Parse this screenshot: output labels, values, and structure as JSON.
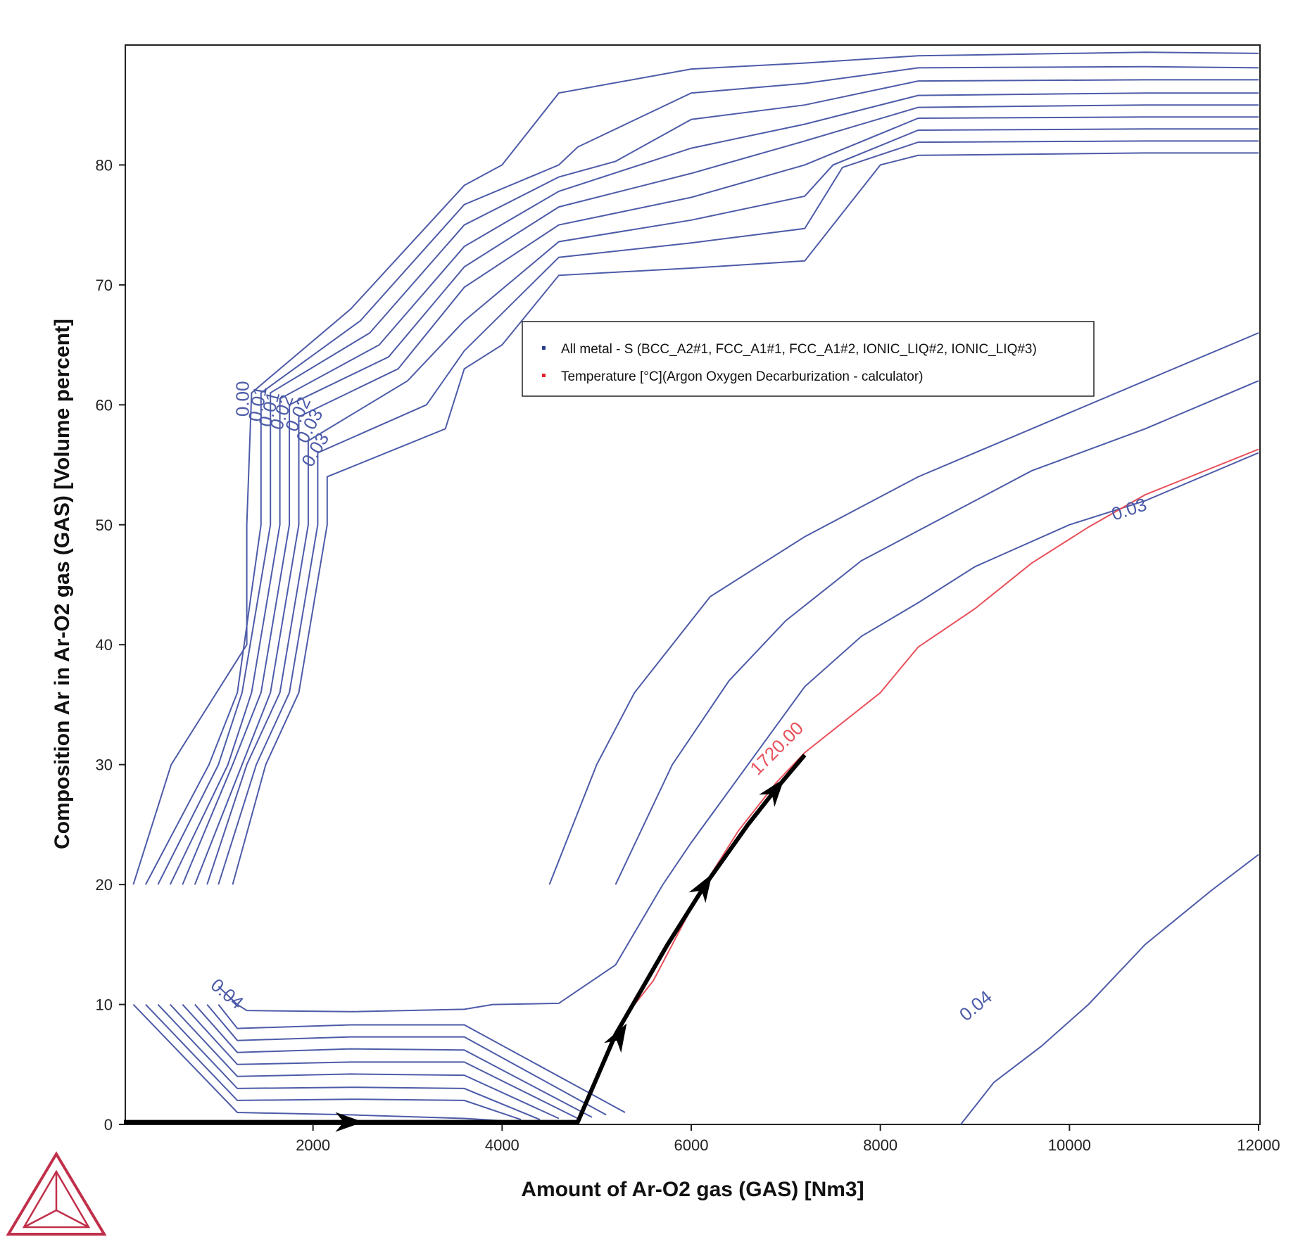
{
  "chart_data": {
    "type": "line",
    "xlabel": "Amount of Ar-O2 gas (GAS) [Nm3]",
    "ylabel": "Composition Ar in Ar-O2 gas (GAS) [Volume percent]",
    "xlim": [
      0,
      12000
    ],
    "ylim": [
      0,
      90
    ],
    "x_ticks": [
      2000,
      4000,
      6000,
      8000,
      10000,
      12000
    ],
    "y_ticks": [
      0,
      10,
      20,
      30,
      40,
      50,
      60,
      70,
      80
    ],
    "grid": false,
    "legend_position": "center",
    "colors": {
      "contour": "#4d5ba8",
      "temperature": "#e8505a",
      "path": "#000000",
      "logo": "#c0304a"
    },
    "legend": [
      {
        "label": "All metal - S (BCC_A2#1, FCC_A1#1, FCC_A1#2, IONIC_LIQ#2, IONIC_LIQ#3)",
        "color": "#233a8c"
      },
      {
        "label": "Temperature [°C](Argon Oxygen Decarburization - calculator)",
        "color": "#e8202a"
      }
    ],
    "contours": [
      {
        "label": "0.00",
        "points": [
          [
            100,
            20
          ],
          [
            500,
            30
          ],
          [
            1300,
            40
          ],
          [
            1300,
            50
          ],
          [
            1350,
            61
          ],
          [
            2400,
            68
          ],
          [
            3600,
            78.3
          ],
          [
            4000,
            80
          ],
          [
            4600,
            86
          ],
          [
            6000,
            88
          ],
          [
            7200,
            88.5
          ],
          [
            8400,
            89.1
          ],
          [
            10800,
            89.4
          ],
          [
            12000,
            89.3
          ]
        ]
      },
      {
        "label": "0.01",
        "points": [
          [
            230,
            20
          ],
          [
            900,
            30
          ],
          [
            1200,
            36
          ],
          [
            1450,
            50
          ],
          [
            1450,
            61
          ],
          [
            2500,
            67
          ],
          [
            3600,
            76.7
          ],
          [
            4600,
            80
          ],
          [
            4800,
            81.5
          ],
          [
            6000,
            86
          ],
          [
            7200,
            86.8
          ],
          [
            8400,
            88.1
          ],
          [
            10800,
            88.2
          ],
          [
            12000,
            88.1
          ]
        ]
      },
      {
        "label": "0.01",
        "points": [
          [
            360,
            20
          ],
          [
            1000,
            30
          ],
          [
            1250,
            36
          ],
          [
            1550,
            50
          ],
          [
            1550,
            61
          ],
          [
            2600,
            66
          ],
          [
            3600,
            75
          ],
          [
            4600,
            79
          ],
          [
            5200,
            80.3
          ],
          [
            6000,
            83.8
          ],
          [
            7200,
            85
          ],
          [
            8400,
            87
          ],
          [
            10800,
            87.1
          ],
          [
            12000,
            87.1
          ]
        ]
      },
      {
        "label": "0.02",
        "points": [
          [
            490,
            20
          ],
          [
            1100,
            30
          ],
          [
            1350,
            36
          ],
          [
            1650,
            50
          ],
          [
            1650,
            60.5
          ],
          [
            2700,
            65
          ],
          [
            3600,
            73.2
          ],
          [
            4600,
            77.8
          ],
          [
            6000,
            81.4
          ],
          [
            7200,
            83.4
          ],
          [
            8400,
            85.8
          ],
          [
            10800,
            86
          ],
          [
            12000,
            86
          ]
        ]
      },
      {
        "label": "0.02",
        "points": [
          [
            620,
            20
          ],
          [
            1150,
            30
          ],
          [
            1450,
            36
          ],
          [
            1750,
            50
          ],
          [
            1750,
            60
          ],
          [
            2800,
            64
          ],
          [
            3600,
            71.5
          ],
          [
            4600,
            76.5
          ],
          [
            6000,
            79.3
          ],
          [
            7200,
            82
          ],
          [
            8400,
            84.8
          ],
          [
            10800,
            85
          ],
          [
            12000,
            85
          ]
        ]
      },
      {
        "label": "0.03",
        "points": [
          [
            750,
            20
          ],
          [
            1250,
            30
          ],
          [
            1550,
            36
          ],
          [
            1850,
            50
          ],
          [
            1850,
            59
          ],
          [
            2900,
            63
          ],
          [
            3600,
            69.8
          ],
          [
            4600,
            75
          ],
          [
            6000,
            77.3
          ],
          [
            7200,
            80
          ],
          [
            8400,
            83.9
          ],
          [
            10800,
            84
          ],
          [
            12000,
            84
          ]
        ]
      },
      {
        "label": "0.03",
        "points": [
          [
            880,
            20
          ],
          [
            1300,
            30
          ],
          [
            1650,
            36
          ],
          [
            1950,
            50
          ],
          [
            1950,
            57
          ],
          [
            3000,
            62
          ],
          [
            3600,
            67
          ],
          [
            4600,
            73.6
          ],
          [
            6000,
            75.4
          ],
          [
            7200,
            77.4
          ],
          [
            7500,
            80
          ],
          [
            8400,
            82.9
          ],
          [
            10800,
            83
          ],
          [
            12000,
            83
          ]
        ]
      },
      {
        "label": "",
        "points": [
          [
            1000,
            20
          ],
          [
            1400,
            30
          ],
          [
            1750,
            36
          ],
          [
            2050,
            50
          ],
          [
            2050,
            56
          ],
          [
            3200,
            60
          ],
          [
            3600,
            64.5
          ],
          [
            4600,
            72.3
          ],
          [
            6000,
            73.5
          ],
          [
            7200,
            74.7
          ],
          [
            7600,
            79.8
          ],
          [
            8400,
            81.9
          ],
          [
            10800,
            82
          ],
          [
            12000,
            82
          ]
        ]
      },
      {
        "label": "",
        "points": [
          [
            1150,
            20
          ],
          [
            1500,
            30
          ],
          [
            1850,
            36
          ],
          [
            2150,
            50
          ],
          [
            2150,
            54
          ],
          [
            3400,
            58
          ],
          [
            3600,
            63
          ],
          [
            4000,
            65
          ],
          [
            4600,
            70.8
          ],
          [
            6000,
            71.4
          ],
          [
            7200,
            72
          ],
          [
            8000,
            80
          ],
          [
            8400,
            80.8
          ],
          [
            10800,
            81
          ],
          [
            12000,
            81
          ]
        ]
      },
      {
        "label": "0.04",
        "points": [
          [
            1000,
            11.5
          ],
          [
            1200,
            10
          ],
          [
            1300,
            9.5
          ],
          [
            2400,
            9.4
          ],
          [
            3600,
            9.6
          ],
          [
            3900,
            10
          ],
          [
            4600,
            10.1
          ],
          [
            5200,
            13.3
          ],
          [
            5700,
            20
          ],
          [
            6000,
            23.5
          ],
          [
            6600,
            30
          ],
          [
            7200,
            36.5
          ],
          [
            7800,
            40.7
          ],
          [
            8400,
            43.5
          ],
          [
            9000,
            46.5
          ],
          [
            10000,
            50
          ],
          [
            10800,
            52
          ],
          [
            12000,
            56
          ]
        ]
      },
      {
        "label": "",
        "points": [
          [
            100,
            10
          ],
          [
            1200,
            1
          ],
          [
            2400,
            0.8
          ],
          [
            3600,
            0.5
          ],
          [
            4000,
            0.3
          ]
        ]
      },
      {
        "label": "",
        "points": [
          [
            230,
            10
          ],
          [
            1200,
            2
          ],
          [
            2400,
            2.1
          ],
          [
            3600,
            2
          ],
          [
            4200,
            0.4
          ]
        ]
      },
      {
        "label": "",
        "points": [
          [
            360,
            10
          ],
          [
            1200,
            3
          ],
          [
            2400,
            3.1
          ],
          [
            3600,
            3
          ],
          [
            4400,
            0.4
          ]
        ]
      },
      {
        "label": "",
        "points": [
          [
            490,
            10
          ],
          [
            1200,
            4
          ],
          [
            2400,
            4.2
          ],
          [
            3600,
            4.1
          ],
          [
            4600,
            0.5
          ]
        ]
      },
      {
        "label": "",
        "points": [
          [
            620,
            10
          ],
          [
            1200,
            5
          ],
          [
            2400,
            5.2
          ],
          [
            3600,
            5.2
          ],
          [
            4800,
            0.5
          ]
        ]
      },
      {
        "label": "",
        "points": [
          [
            750,
            10
          ],
          [
            1200,
            6
          ],
          [
            2400,
            6.3
          ],
          [
            3600,
            6.2
          ],
          [
            4950,
            0.6
          ]
        ]
      },
      {
        "label": "",
        "points": [
          [
            880,
            10
          ],
          [
            1200,
            7
          ],
          [
            2400,
            7.3
          ],
          [
            3600,
            7.3
          ],
          [
            5100,
            0.8
          ]
        ]
      },
      {
        "label": "",
        "points": [
          [
            1000,
            10
          ],
          [
            1200,
            8
          ],
          [
            2400,
            8.3
          ],
          [
            3600,
            8.3
          ],
          [
            5300,
            1
          ]
        ]
      },
      {
        "label": "",
        "points": [
          [
            4500,
            20
          ],
          [
            5000,
            30
          ],
          [
            5400,
            36
          ],
          [
            5800,
            40
          ],
          [
            6200,
            44
          ],
          [
            7200,
            49
          ],
          [
            8400,
            54
          ],
          [
            9600,
            58
          ],
          [
            10800,
            62
          ],
          [
            12000,
            66
          ]
        ]
      },
      {
        "label": "",
        "points": [
          [
            5200,
            20
          ],
          [
            5800,
            30
          ],
          [
            6400,
            37
          ],
          [
            7000,
            42
          ],
          [
            7800,
            47
          ],
          [
            8400,
            49.5
          ],
          [
            9600,
            54.5
          ],
          [
            10800,
            58
          ],
          [
            12000,
            62
          ]
        ]
      },
      {
        "label": "0.04",
        "points": [
          [
            8850,
            0
          ],
          [
            9200,
            3.5
          ],
          [
            9700,
            6.5
          ],
          [
            10200,
            10
          ],
          [
            10800,
            15
          ],
          [
            11500,
            19.5
          ],
          [
            12000,
            22.5
          ]
        ]
      }
    ],
    "contour_label_extra": "0.03",
    "temperature_line": {
      "label": "1720.00",
      "points": [
        [
          4820,
          0.3
        ],
        [
          5000,
          4
        ],
        [
          5300,
          9
        ],
        [
          5600,
          12
        ],
        [
          5800,
          15
        ],
        [
          6100,
          19.5
        ],
        [
          6500,
          24.5
        ],
        [
          6900,
          28.5
        ],
        [
          7200,
          31
        ],
        [
          8000,
          36
        ],
        [
          8400,
          39.8
        ],
        [
          9000,
          43
        ],
        [
          9600,
          46.8
        ],
        [
          10200,
          49.8
        ],
        [
          10800,
          52.5
        ],
        [
          12000,
          56.3
        ]
      ]
    },
    "process_path": {
      "points": [
        [
          0,
          0.2
        ],
        [
          4800,
          0.2
        ],
        [
          5200,
          7.5
        ],
        [
          5750,
          15
        ],
        [
          6150,
          20
        ],
        [
          6600,
          25
        ],
        [
          6900,
          28
        ],
        [
          7200,
          30.8
        ]
      ],
      "arrows": [
        [
          2400,
          0.2,
          0
        ],
        [
          5250,
          7.5,
          1
        ],
        [
          6150,
          20,
          1
        ],
        [
          6900,
          28,
          1
        ]
      ]
    }
  }
}
